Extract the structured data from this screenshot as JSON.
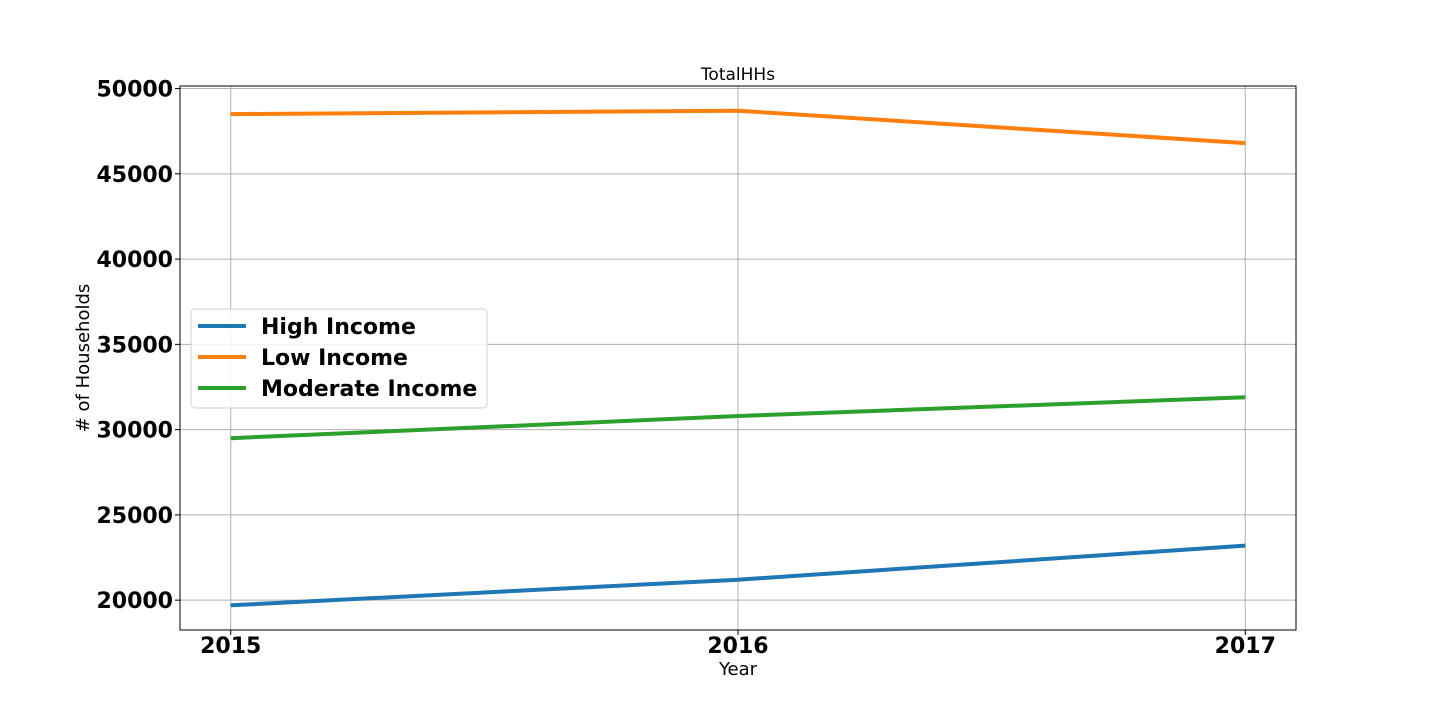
{
  "chart_data": {
    "type": "line",
    "title": "TotalHHs",
    "xlabel": "Year",
    "ylabel": "# of Households",
    "x": [
      2015,
      2016,
      2017
    ],
    "x_tick_labels": [
      "2015",
      "2016",
      "2017"
    ],
    "xlim": [
      2014.9,
      2017.1
    ],
    "ylim": [
      18250,
      50150
    ],
    "y_ticks": [
      20000,
      25000,
      30000,
      35000,
      40000,
      45000,
      50000
    ],
    "y_tick_labels": [
      "20000",
      "25000",
      "30000",
      "35000",
      "40000",
      "45000",
      "50000"
    ],
    "grid": true,
    "legend_placement": "center-left",
    "series": [
      {
        "name": "High Income",
        "color": "#1f77b4",
        "values": [
          19700,
          21200,
          23200
        ]
      },
      {
        "name": "Low Income",
        "color": "#ff7f0e",
        "values": [
          48500,
          48700,
          46800
        ]
      },
      {
        "name": "Moderate Income",
        "color": "#2ca02c",
        "values": [
          29500,
          30800,
          31900
        ]
      }
    ]
  }
}
